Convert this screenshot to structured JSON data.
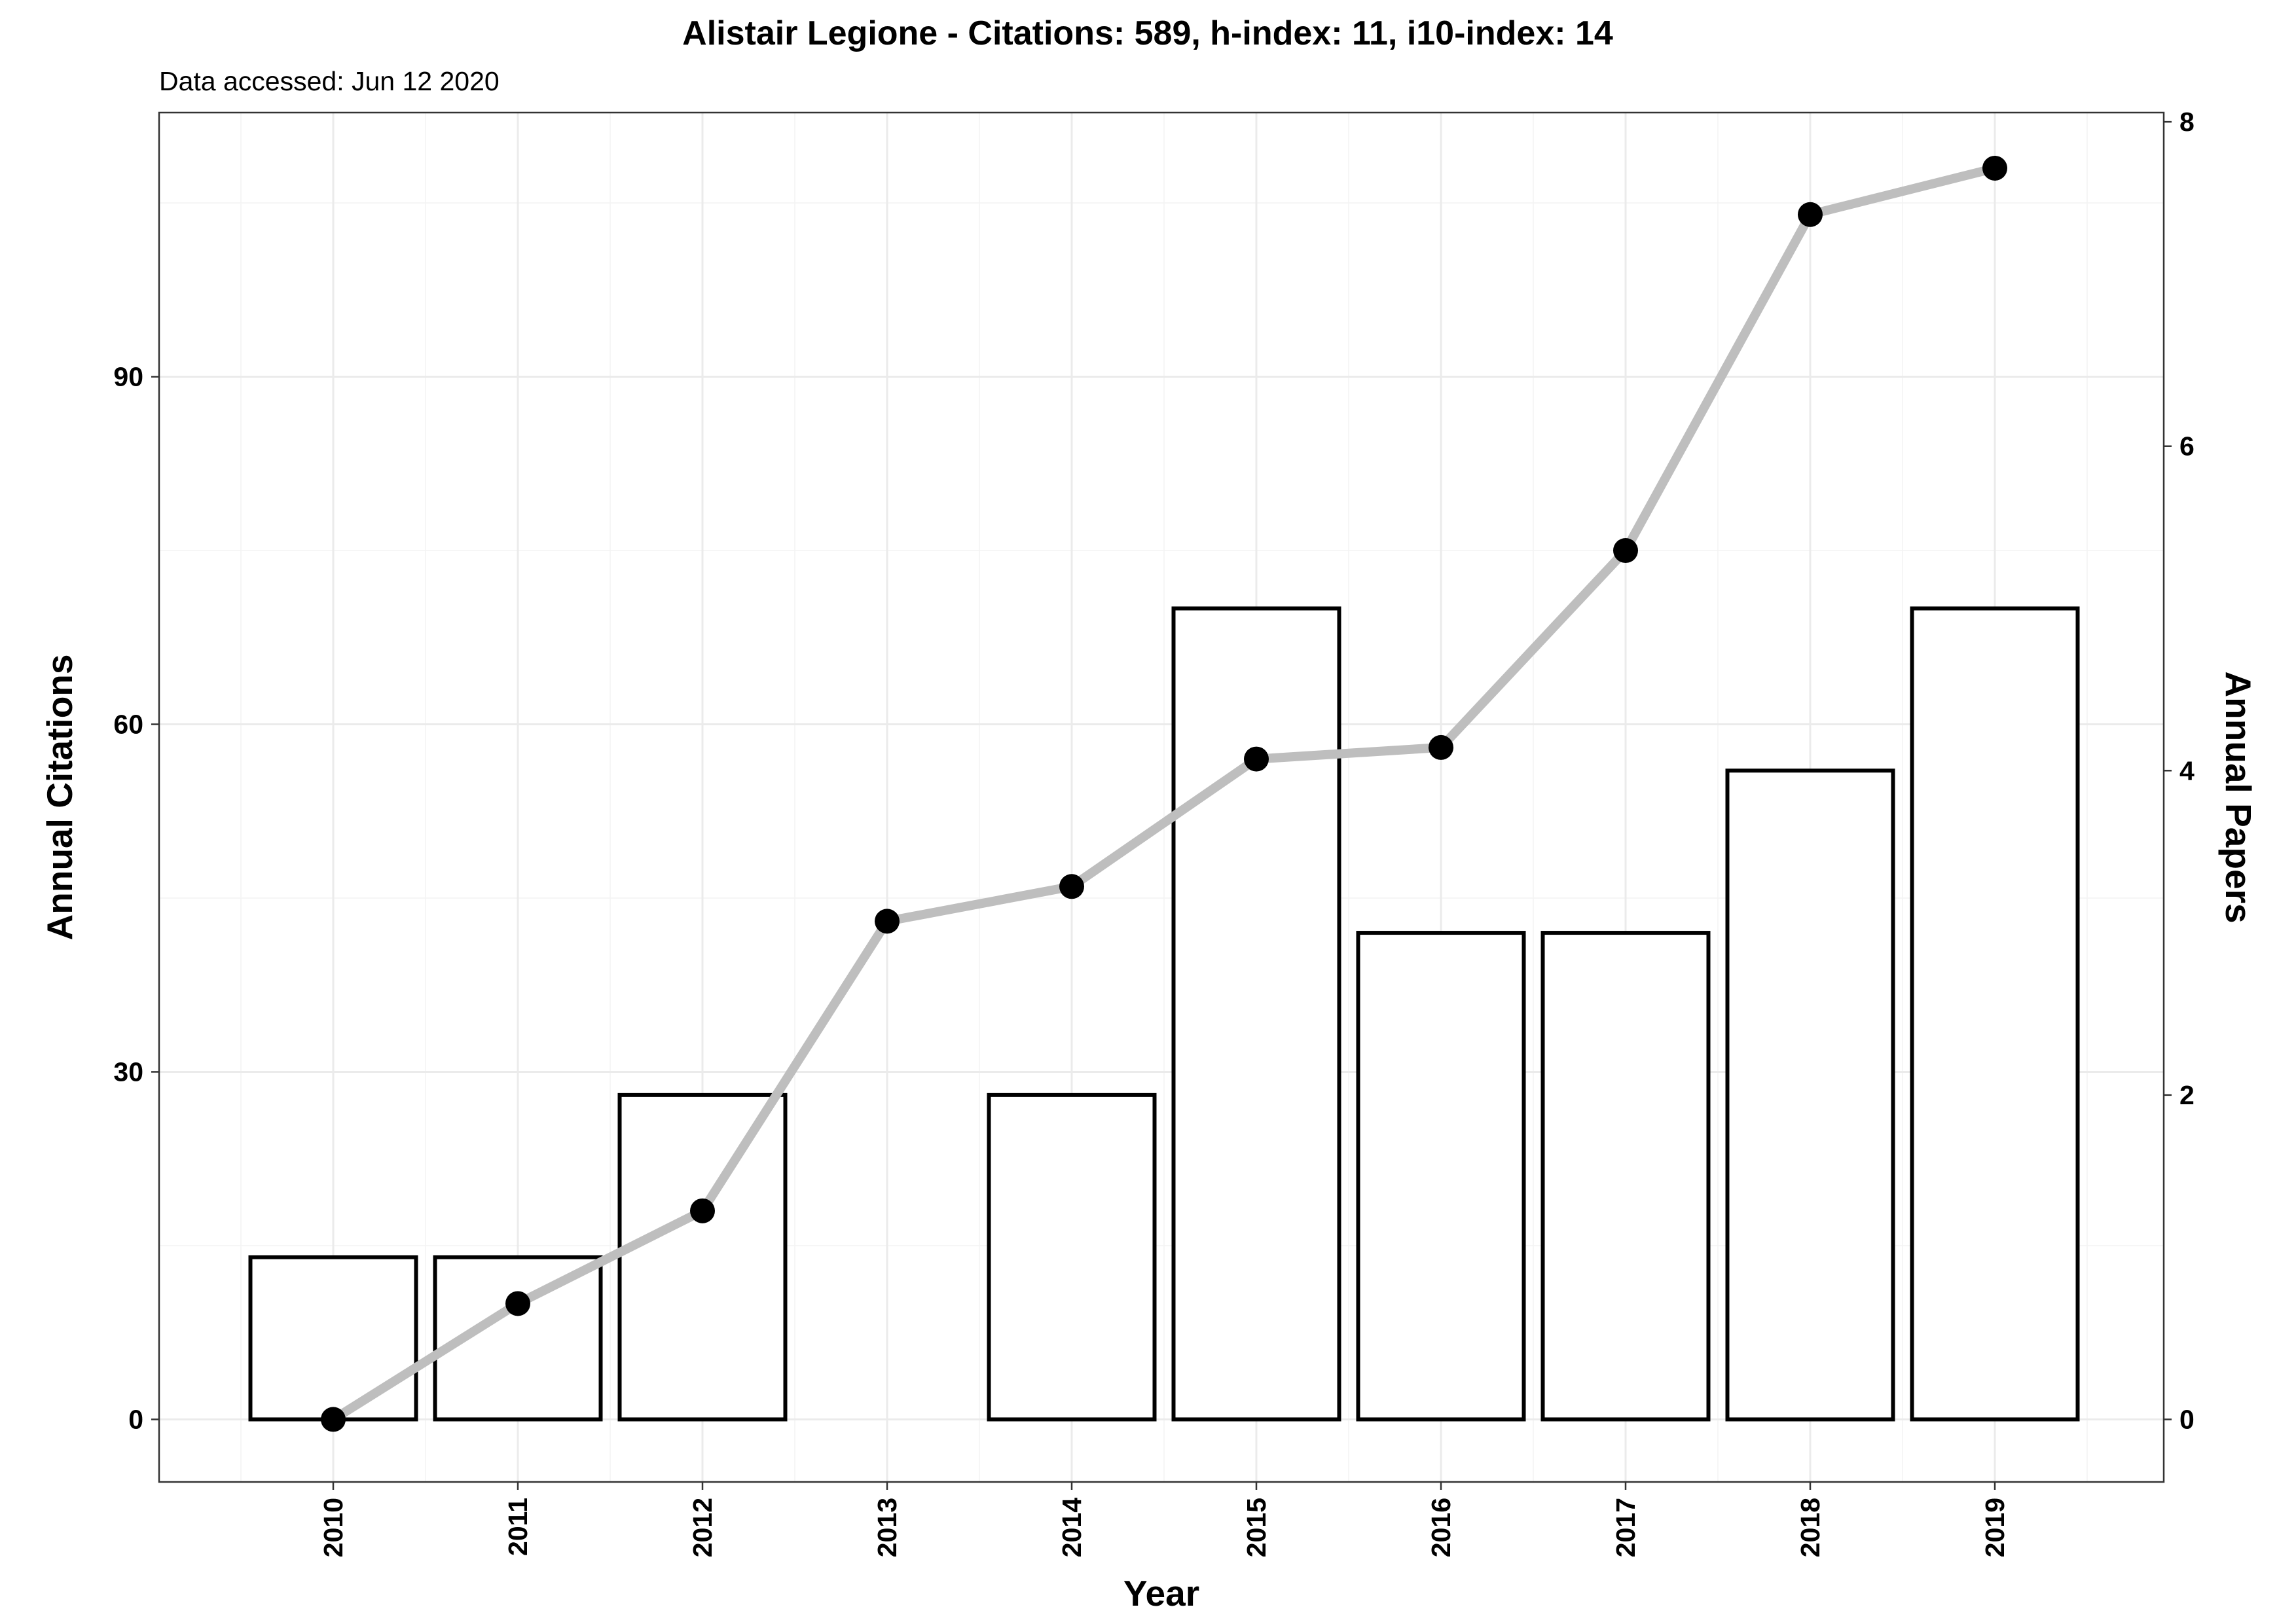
{
  "title": "Alistair Legione - Citations: 589, h-index: 11, i10-index: 14",
  "subtitle": "Data accessed: Jun 12 2020",
  "chart_data": {
    "type": "bar",
    "categories": [
      "2010",
      "2011",
      "2012",
      "2013",
      "2014",
      "2015",
      "2016",
      "2017",
      "2018",
      "2019"
    ],
    "series": [
      {
        "type": "bar",
        "axis": "right",
        "values": [
          1,
          1,
          2,
          0,
          2,
          5,
          3,
          3,
          4,
          5
        ]
      },
      {
        "type": "line",
        "axis": "left",
        "values": [
          0,
          10,
          18,
          43,
          46,
          57,
          58,
          75,
          104,
          108
        ]
      }
    ],
    "xlabel": "Year",
    "ylabel": "Annual Citations",
    "y2label": "Annual Papers",
    "ylim": [
      -5.4,
      112.8
    ],
    "y2lim": [
      -0.3857,
      8.057
    ],
    "yticks": [
      "0",
      "30",
      "60",
      "90"
    ],
    "y2ticks": [
      "0",
      "2",
      "4",
      "6",
      "8"
    ],
    "grid": true,
    "colors": {
      "bar_fill": "#ffffff",
      "bar_outline": "#000000",
      "line": "#bebebe",
      "point": "#000000"
    }
  }
}
